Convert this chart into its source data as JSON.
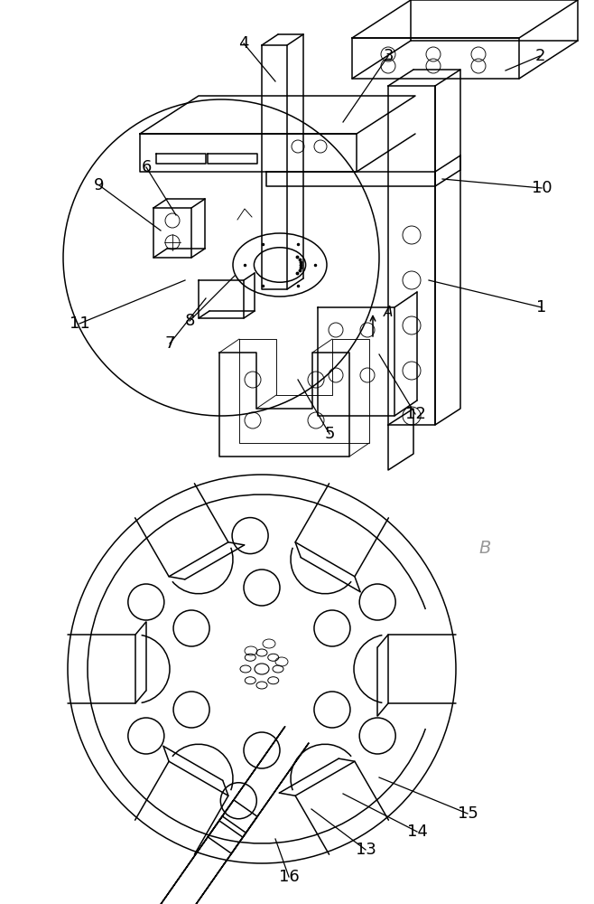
{
  "figure_width": 6.58,
  "figure_height": 10.0,
  "dpi": 100,
  "bg_color": "#ffffff",
  "line_color": "#000000",
  "lw": 1.1,
  "tlw": 0.65,
  "label_fs": 13
}
